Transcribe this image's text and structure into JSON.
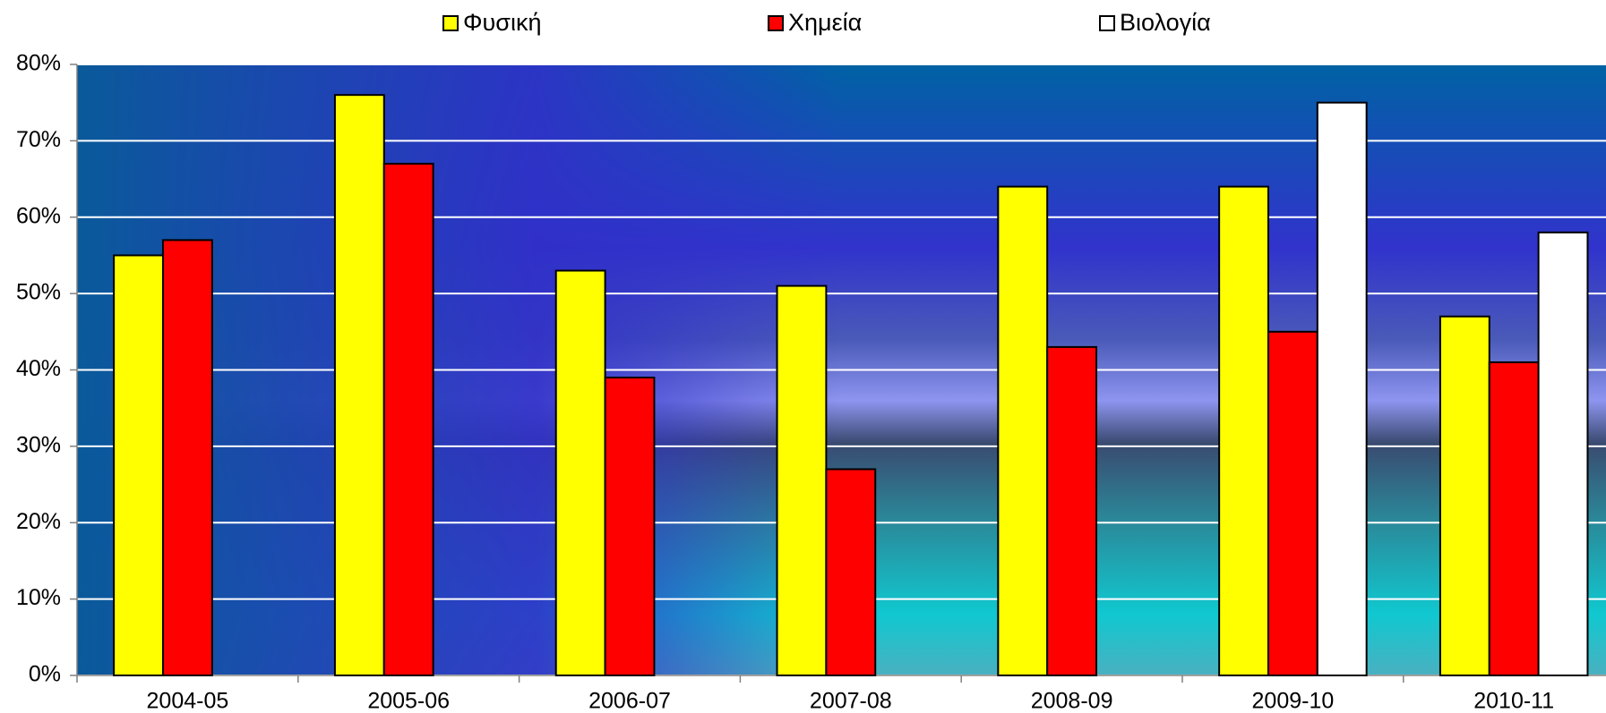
{
  "chart_data": {
    "type": "bar",
    "categories": [
      "2004-05",
      "2005-06",
      "2006-07",
      "2007-08",
      "2008-09",
      "2009-10",
      "2010-11"
    ],
    "series": [
      {
        "name": "Φυσική",
        "color": "#ffff00",
        "values": [
          55,
          76,
          53,
          51,
          64,
          64,
          47
        ]
      },
      {
        "name": "Χημεία",
        "color": "#ff0000",
        "values": [
          57,
          67,
          39,
          27,
          43,
          45,
          41
        ]
      },
      {
        "name": "Βιολογία",
        "color": "#ffffff",
        "values": [
          null,
          null,
          null,
          null,
          null,
          75,
          58
        ]
      }
    ],
    "ylim": [
      0,
      80
    ],
    "yticks": [
      {
        "value": 0,
        "label": "0%"
      },
      {
        "value": 10,
        "label": "10%"
      },
      {
        "value": 20,
        "label": "20%"
      },
      {
        "value": 30,
        "label": "30%"
      },
      {
        "value": 40,
        "label": "40%"
      },
      {
        "value": 50,
        "label": "50%"
      },
      {
        "value": 60,
        "label": "60%"
      },
      {
        "value": 70,
        "label": "70%"
      },
      {
        "value": 80,
        "label": "80%"
      }
    ],
    "grid": true,
    "legend": "top"
  }
}
